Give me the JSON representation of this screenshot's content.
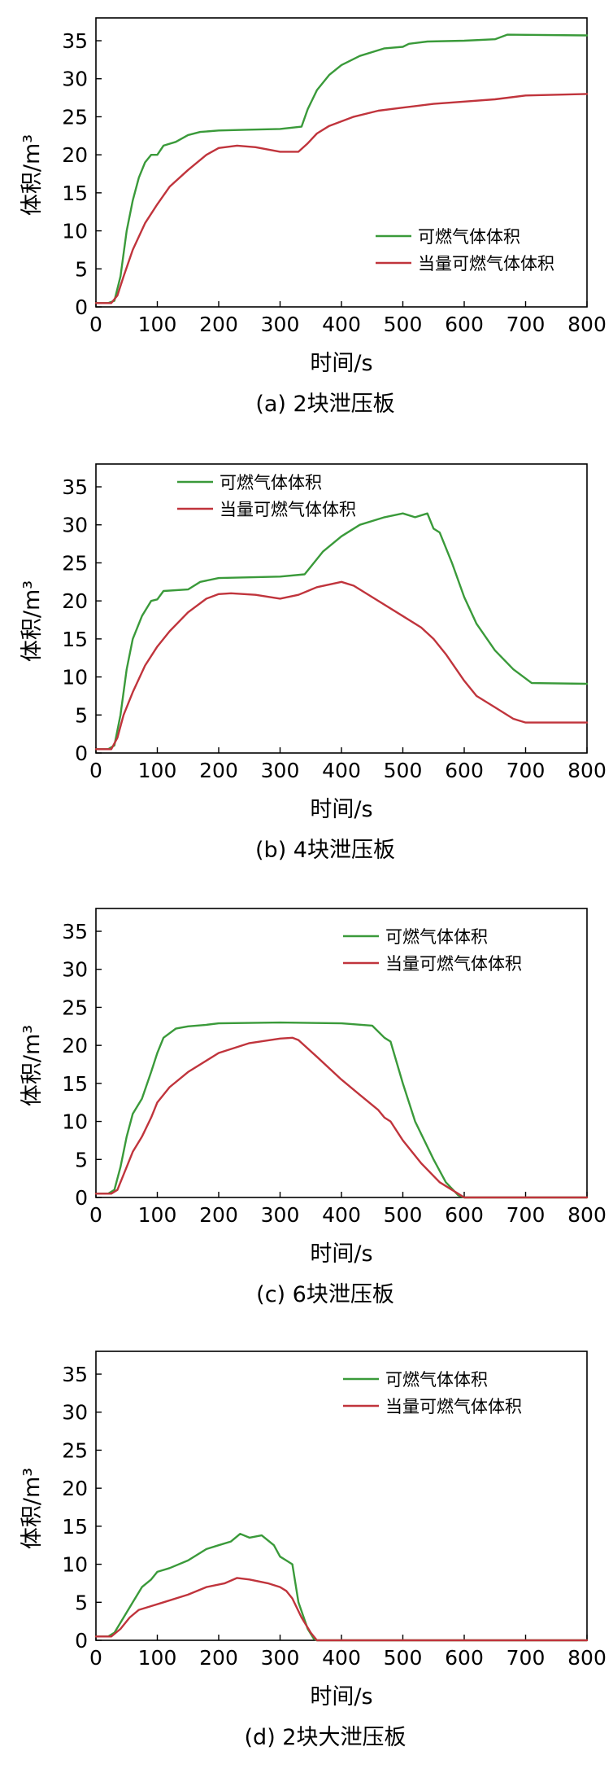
{
  "chart_data": [
    {
      "type": "line",
      "caption": "(a) 2块泄压板",
      "xlabel": "时间/s",
      "ylabel": "体积/m³",
      "xlim": [
        0,
        800
      ],
      "ylim": [
        0,
        38
      ],
      "xticks": [
        0,
        100,
        200,
        300,
        400,
        500,
        600,
        700,
        800
      ],
      "yticks": [
        0,
        5,
        10,
        15,
        20,
        25,
        30,
        35
      ],
      "legend_position": "bottom-right",
      "series": [
        {
          "name": "可燃气体体积",
          "color": "#3a9a3a",
          "points": [
            [
              0,
              0.5
            ],
            [
              20,
              0.5
            ],
            [
              30,
              0.8
            ],
            [
              40,
              4
            ],
            [
              50,
              10
            ],
            [
              60,
              14
            ],
            [
              70,
              17
            ],
            [
              80,
              19
            ],
            [
              90,
              20
            ],
            [
              100,
              20
            ],
            [
              110,
              21.2
            ],
            [
              130,
              21.7
            ],
            [
              150,
              22.6
            ],
            [
              170,
              23
            ],
            [
              200,
              23.2
            ],
            [
              250,
              23.3
            ],
            [
              300,
              23.4
            ],
            [
              335,
              23.7
            ],
            [
              345,
              26
            ],
            [
              360,
              28.5
            ],
            [
              380,
              30.5
            ],
            [
              400,
              31.8
            ],
            [
              430,
              33
            ],
            [
              470,
              34
            ],
            [
              500,
              34.2
            ],
            [
              510,
              34.6
            ],
            [
              540,
              34.9
            ],
            [
              600,
              35
            ],
            [
              650,
              35.2
            ],
            [
              670,
              35.8
            ],
            [
              800,
              35.7
            ]
          ]
        },
        {
          "name": "当量可燃气体体积",
          "color": "#c0343c",
          "points": [
            [
              0,
              0.5
            ],
            [
              25,
              0.5
            ],
            [
              35,
              1.5
            ],
            [
              45,
              4
            ],
            [
              60,
              7.5
            ],
            [
              80,
              11
            ],
            [
              100,
              13.5
            ],
            [
              120,
              15.8
            ],
            [
              150,
              18
            ],
            [
              180,
              20
            ],
            [
              200,
              20.9
            ],
            [
              230,
              21.2
            ],
            [
              260,
              21
            ],
            [
              300,
              20.4
            ],
            [
              330,
              20.4
            ],
            [
              345,
              21.5
            ],
            [
              360,
              22.8
            ],
            [
              380,
              23.8
            ],
            [
              420,
              25
            ],
            [
              460,
              25.8
            ],
            [
              500,
              26.2
            ],
            [
              550,
              26.7
            ],
            [
              600,
              27
            ],
            [
              650,
              27.3
            ],
            [
              700,
              27.8
            ],
            [
              800,
              28
            ]
          ]
        }
      ]
    },
    {
      "type": "line",
      "caption": "(b) 4块泄压板",
      "xlabel": "时间/s",
      "ylabel": "体积/m³",
      "xlim": [
        0,
        800
      ],
      "ylim": [
        0,
        38
      ],
      "xticks": [
        0,
        100,
        200,
        300,
        400,
        500,
        600,
        700,
        800
      ],
      "yticks": [
        0,
        5,
        10,
        15,
        20,
        25,
        30,
        35
      ],
      "legend_position": "top-left",
      "series": [
        {
          "name": "可燃气体体积",
          "color": "#3a9a3a",
          "points": [
            [
              0,
              0.5
            ],
            [
              20,
              0.5
            ],
            [
              30,
              1
            ],
            [
              40,
              5
            ],
            [
              50,
              11
            ],
            [
              60,
              15
            ],
            [
              75,
              18
            ],
            [
              90,
              20
            ],
            [
              100,
              20.2
            ],
            [
              110,
              21.3
            ],
            [
              150,
              21.5
            ],
            [
              170,
              22.5
            ],
            [
              200,
              23
            ],
            [
              250,
              23.1
            ],
            [
              300,
              23.2
            ],
            [
              340,
              23.5
            ],
            [
              350,
              24.5
            ],
            [
              370,
              26.5
            ],
            [
              400,
              28.5
            ],
            [
              430,
              30
            ],
            [
              470,
              31
            ],
            [
              500,
              31.5
            ],
            [
              520,
              31
            ],
            [
              540,
              31.5
            ],
            [
              550,
              29.5
            ],
            [
              560,
              29
            ],
            [
              580,
              25
            ],
            [
              600,
              20.5
            ],
            [
              620,
              17
            ],
            [
              650,
              13.5
            ],
            [
              680,
              11
            ],
            [
              710,
              9.2
            ],
            [
              800,
              9.1
            ]
          ]
        },
        {
          "name": "当量可燃气体体积",
          "color": "#c0343c",
          "points": [
            [
              0,
              0.5
            ],
            [
              25,
              0.5
            ],
            [
              35,
              2
            ],
            [
              45,
              5
            ],
            [
              60,
              8
            ],
            [
              80,
              11.5
            ],
            [
              100,
              14
            ],
            [
              120,
              16
            ],
            [
              150,
              18.5
            ],
            [
              180,
              20.3
            ],
            [
              200,
              20.9
            ],
            [
              220,
              21
            ],
            [
              260,
              20.8
            ],
            [
              300,
              20.3
            ],
            [
              330,
              20.8
            ],
            [
              360,
              21.8
            ],
            [
              400,
              22.5
            ],
            [
              420,
              22
            ],
            [
              450,
              20.5
            ],
            [
              500,
              18
            ],
            [
              530,
              16.5
            ],
            [
              550,
              15
            ],
            [
              570,
              13
            ],
            [
              600,
              9.5
            ],
            [
              620,
              7.5
            ],
            [
              650,
              6
            ],
            [
              680,
              4.5
            ],
            [
              700,
              4
            ],
            [
              800,
              4
            ]
          ]
        }
      ]
    },
    {
      "type": "line",
      "caption": "(c) 6块泄压板",
      "xlabel": "时间/s",
      "ylabel": "体积/m³",
      "xlim": [
        0,
        800
      ],
      "ylim": [
        0,
        38
      ],
      "xticks": [
        0,
        100,
        200,
        300,
        400,
        500,
        600,
        700,
        800
      ],
      "yticks": [
        0,
        5,
        10,
        15,
        20,
        25,
        30,
        35
      ],
      "legend_position": "top-right",
      "series": [
        {
          "name": "可燃气体体积",
          "color": "#3a9a3a",
          "points": [
            [
              0,
              0.5
            ],
            [
              20,
              0.5
            ],
            [
              30,
              1
            ],
            [
              40,
              4
            ],
            [
              50,
              8
            ],
            [
              60,
              11
            ],
            [
              75,
              13
            ],
            [
              90,
              16.5
            ],
            [
              100,
              19
            ],
            [
              110,
              21
            ],
            [
              130,
              22.2
            ],
            [
              150,
              22.5
            ],
            [
              180,
              22.7
            ],
            [
              200,
              22.9
            ],
            [
              300,
              23
            ],
            [
              400,
              22.9
            ],
            [
              450,
              22.6
            ],
            [
              470,
              21
            ],
            [
              480,
              20.5
            ],
            [
              500,
              15
            ],
            [
              520,
              10
            ],
            [
              550,
              5
            ],
            [
              570,
              2
            ],
            [
              590,
              0.3
            ],
            [
              600,
              0
            ],
            [
              800,
              0
            ]
          ]
        },
        {
          "name": "当量可燃气体体积",
          "color": "#c0343c",
          "points": [
            [
              0,
              0.5
            ],
            [
              25,
              0.5
            ],
            [
              35,
              1
            ],
            [
              50,
              4
            ],
            [
              60,
              6
            ],
            [
              75,
              8
            ],
            [
              90,
              10.5
            ],
            [
              100,
              12.5
            ],
            [
              120,
              14.5
            ],
            [
              150,
              16.5
            ],
            [
              200,
              19
            ],
            [
              250,
              20.3
            ],
            [
              300,
              20.9
            ],
            [
              320,
              21
            ],
            [
              330,
              20.7
            ],
            [
              360,
              18.5
            ],
            [
              400,
              15.5
            ],
            [
              430,
              13.5
            ],
            [
              460,
              11.5
            ],
            [
              470,
              10.5
            ],
            [
              480,
              10
            ],
            [
              500,
              7.5
            ],
            [
              530,
              4.5
            ],
            [
              560,
              2
            ],
            [
              590,
              0.5
            ],
            [
              600,
              0
            ],
            [
              800,
              0
            ]
          ]
        }
      ]
    },
    {
      "type": "line",
      "caption": "(d) 2块大泄压板",
      "xlabel": "时间/s",
      "ylabel": "体积/m³",
      "xlim": [
        0,
        800
      ],
      "ylim": [
        0,
        38
      ],
      "xticks": [
        0,
        100,
        200,
        300,
        400,
        500,
        600,
        700,
        800
      ],
      "yticks": [
        0,
        5,
        10,
        15,
        20,
        25,
        30,
        35
      ],
      "legend_position": "top-right",
      "series": [
        {
          "name": "可燃气体体积",
          "color": "#3a9a3a",
          "points": [
            [
              0,
              0.5
            ],
            [
              20,
              0.5
            ],
            [
              30,
              1
            ],
            [
              45,
              3
            ],
            [
              60,
              5
            ],
            [
              75,
              7
            ],
            [
              90,
              8
            ],
            [
              100,
              9
            ],
            [
              120,
              9.5
            ],
            [
              150,
              10.5
            ],
            [
              180,
              12
            ],
            [
              200,
              12.5
            ],
            [
              220,
              13
            ],
            [
              235,
              14
            ],
            [
              250,
              13.5
            ],
            [
              270,
              13.8
            ],
            [
              290,
              12.5
            ],
            [
              300,
              11
            ],
            [
              310,
              10.5
            ],
            [
              320,
              10
            ],
            [
              330,
              5
            ],
            [
              345,
              1.5
            ],
            [
              355,
              0.2
            ],
            [
              360,
              0
            ],
            [
              800,
              0
            ]
          ]
        },
        {
          "name": "当量可燃气体体积",
          "color": "#c0343c",
          "points": [
            [
              0,
              0.5
            ],
            [
              25,
              0.5
            ],
            [
              40,
              1.5
            ],
            [
              55,
              3
            ],
            [
              70,
              4
            ],
            [
              90,
              4.5
            ],
            [
              110,
              5
            ],
            [
              150,
              6
            ],
            [
              180,
              7
            ],
            [
              210,
              7.5
            ],
            [
              230,
              8.2
            ],
            [
              250,
              8
            ],
            [
              280,
              7.5
            ],
            [
              300,
              7
            ],
            [
              310,
              6.5
            ],
            [
              320,
              5.5
            ],
            [
              335,
              3
            ],
            [
              350,
              1
            ],
            [
              360,
              0
            ],
            [
              800,
              0
            ]
          ]
        }
      ]
    }
  ]
}
